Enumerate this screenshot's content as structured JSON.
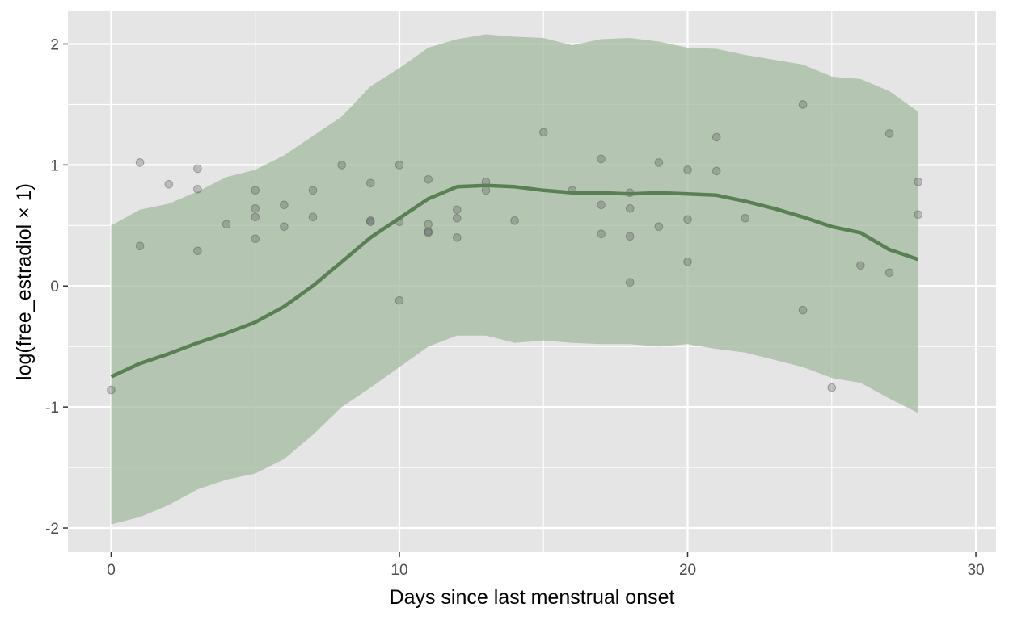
{
  "chart_data": {
    "type": "line",
    "title": "",
    "xlabel": "Days since last menstrual onset",
    "ylabel": "log(free_estradiol × 1)",
    "xlim": [
      -1.5,
      30.7
    ],
    "ylim": [
      -2.2,
      2.27
    ],
    "x_ticks": [
      0,
      10,
      20,
      30
    ],
    "y_ticks": [
      -2,
      -1,
      0,
      1,
      2
    ],
    "x_tick_labels": [
      "0",
      "10",
      "20",
      "30"
    ],
    "y_tick_labels": [
      "-2",
      "-1",
      "0",
      "1",
      "2"
    ],
    "grid": true,
    "legend": "none",
    "colors": {
      "panel": "#e5e5e5",
      "grid": "#ffffff",
      "ribbon": "#a3bb9f",
      "line": "#5a7f54",
      "points": "#555555"
    },
    "series": [
      {
        "type": "ribbon",
        "x": [
          0,
          1,
          2,
          3,
          4,
          5,
          6,
          7,
          8,
          9,
          10,
          11,
          12,
          13,
          14,
          15,
          16,
          17,
          18,
          19,
          20,
          21,
          22,
          23,
          24,
          25,
          26,
          27,
          28
        ],
        "lower": [
          -1.97,
          -1.91,
          -1.81,
          -1.68,
          -1.6,
          -1.55,
          -1.43,
          -1.23,
          -1.0,
          -0.84,
          -0.67,
          -0.5,
          -0.41,
          -0.41,
          -0.47,
          -0.45,
          -0.47,
          -0.48,
          -0.48,
          -0.5,
          -0.48,
          -0.52,
          -0.55,
          -0.61,
          -0.67,
          -0.76,
          -0.8,
          -0.93,
          -1.05
        ],
        "upper": [
          0.5,
          0.63,
          0.68,
          0.78,
          0.9,
          0.96,
          1.08,
          1.24,
          1.4,
          1.65,
          1.8,
          1.97,
          2.04,
          2.08,
          2.06,
          2.05,
          1.99,
          2.04,
          2.05,
          2.02,
          1.97,
          1.96,
          1.91,
          1.87,
          1.83,
          1.73,
          1.71,
          1.61,
          1.44
        ]
      },
      {
        "type": "line",
        "x": [
          0,
          1,
          2,
          3,
          4,
          5,
          6,
          7,
          8,
          9,
          10,
          11,
          12,
          13,
          14,
          15,
          16,
          17,
          18,
          19,
          20,
          21,
          22,
          23,
          24,
          25,
          26,
          27,
          28
        ],
        "y": [
          -0.75,
          -0.64,
          -0.56,
          -0.47,
          -0.39,
          -0.3,
          -0.17,
          0.0,
          0.2,
          0.4,
          0.56,
          0.72,
          0.82,
          0.83,
          0.82,
          0.79,
          0.77,
          0.77,
          0.76,
          0.77,
          0.76,
          0.75,
          0.7,
          0.64,
          0.57,
          0.49,
          0.44,
          0.3,
          0.22
        ]
      },
      {
        "type": "scatter",
        "x": [
          0,
          1,
          1,
          2,
          3,
          3,
          3,
          4,
          5,
          5,
          5,
          5,
          6,
          6,
          7,
          7,
          8,
          9,
          9,
          9,
          10,
          10,
          10,
          11,
          11,
          11,
          11,
          12,
          12,
          12,
          13,
          13,
          14,
          15,
          16,
          17,
          17,
          17,
          18,
          18,
          18,
          18,
          19,
          19,
          20,
          20,
          20,
          21,
          21,
          22,
          24,
          24,
          25,
          26,
          27,
          27,
          28,
          28
        ],
        "y": [
          -0.86,
          1.02,
          0.33,
          0.84,
          0.97,
          0.8,
          0.29,
          0.51,
          0.79,
          0.64,
          0.57,
          0.39,
          0.67,
          0.49,
          0.79,
          0.57,
          1.0,
          0.85,
          0.54,
          0.53,
          1.0,
          0.53,
          -0.12,
          0.88,
          0.51,
          0.45,
          0.44,
          0.63,
          0.56,
          0.4,
          0.86,
          0.79,
          0.54,
          1.27,
          0.79,
          1.05,
          0.67,
          0.43,
          0.77,
          0.64,
          0.41,
          0.03,
          1.02,
          0.49,
          0.96,
          0.55,
          0.2,
          1.23,
          0.95,
          0.56,
          1.5,
          -0.2,
          -0.84,
          0.17,
          1.26,
          0.11,
          0.86,
          0.59
        ]
      }
    ]
  }
}
